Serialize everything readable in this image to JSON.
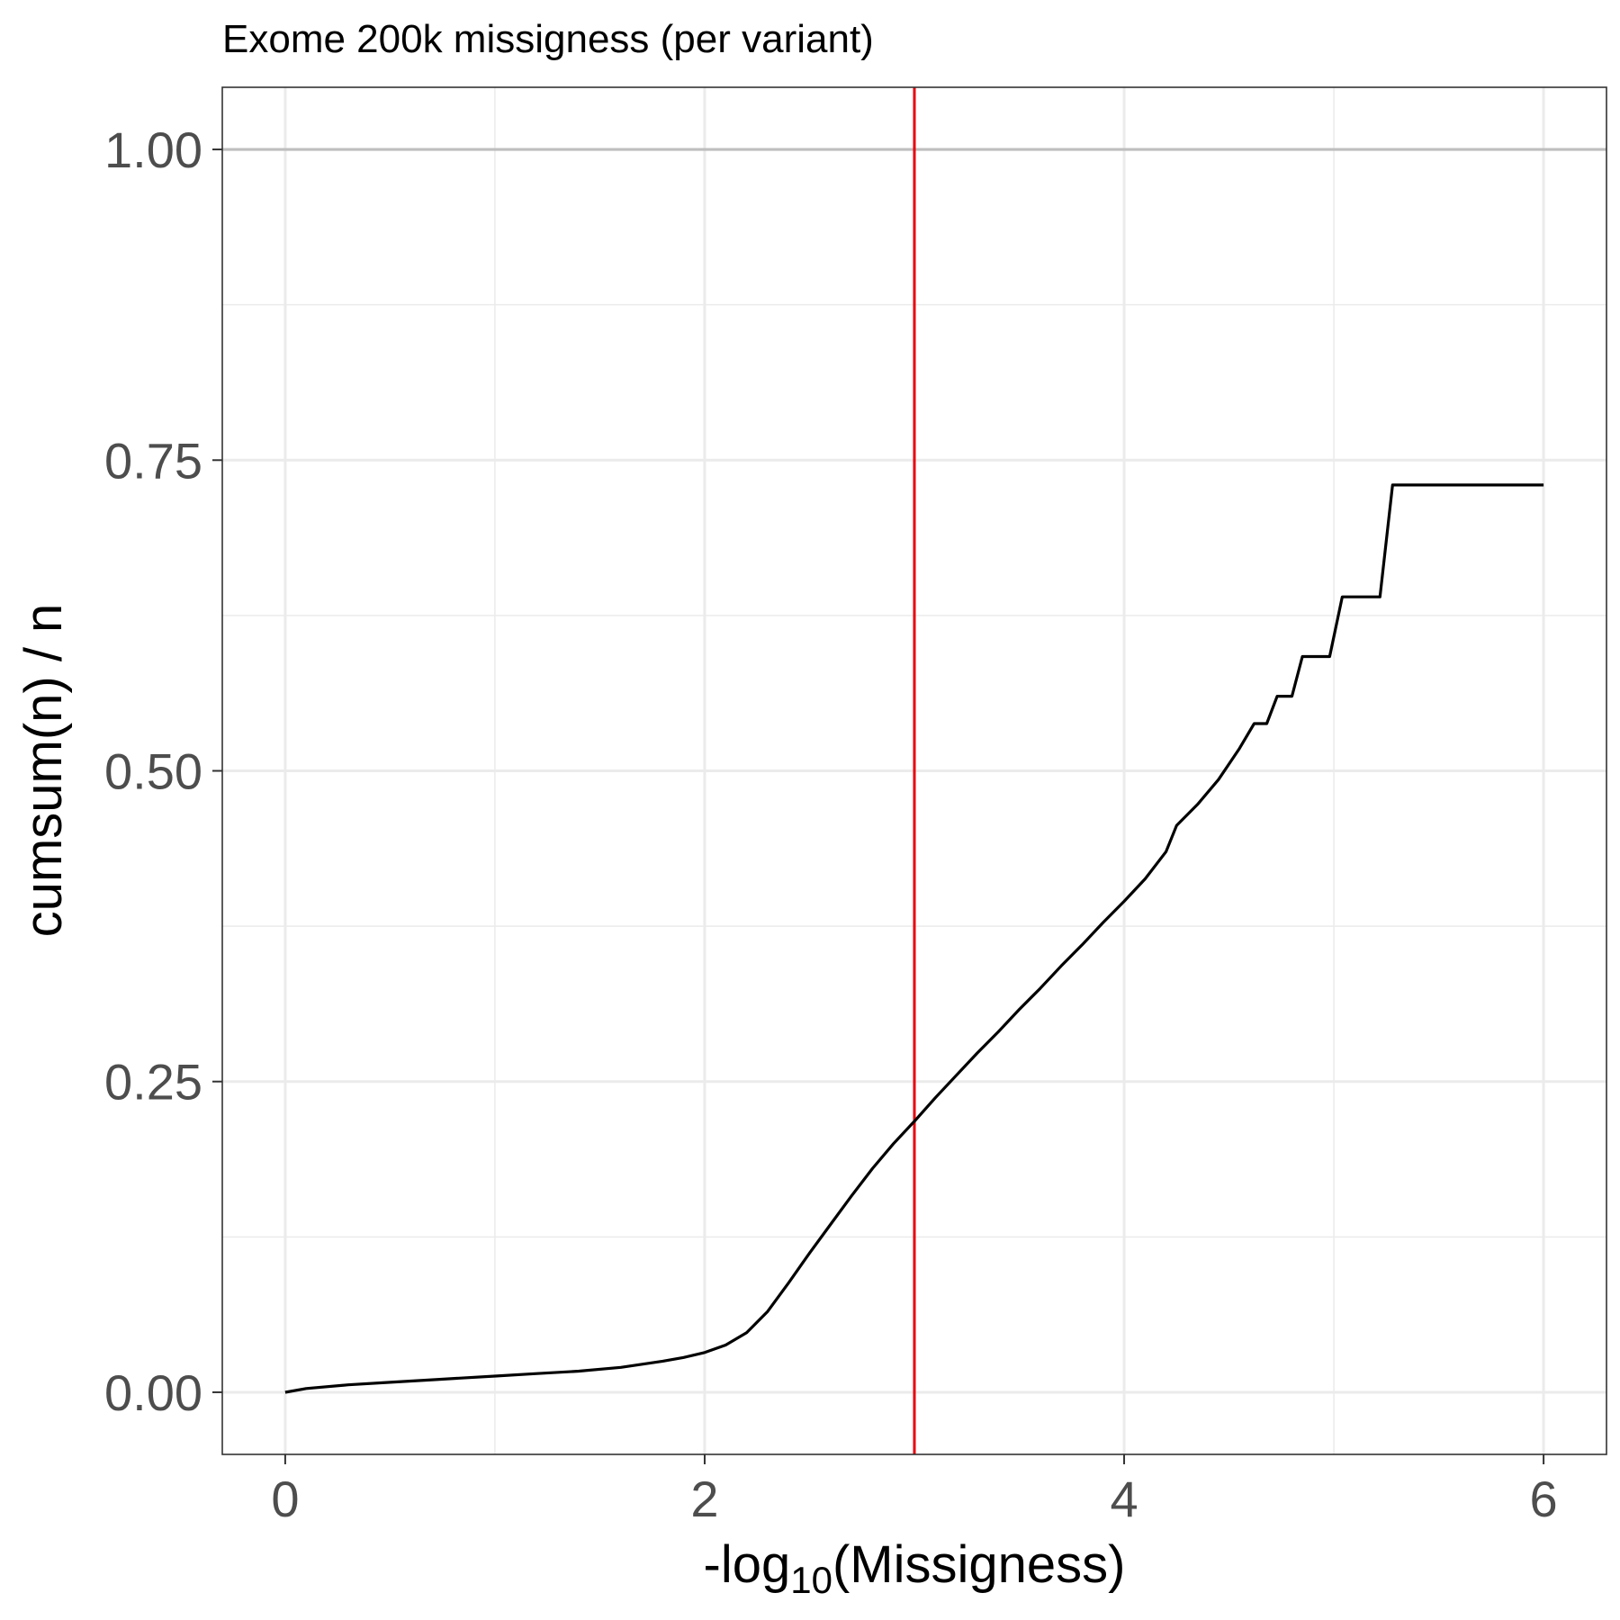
{
  "chart_data": {
    "type": "line",
    "title": "Exome 200k missigness (per variant)",
    "xlabel": {
      "prefix": "-log",
      "subscript": "10",
      "suffix": "(Missigness)"
    },
    "ylabel": "cumsum(n) / n",
    "xlim": [
      -0.3,
      6.3
    ],
    "ylim": [
      -0.05,
      1.05
    ],
    "x_ticks": [
      0,
      2,
      4,
      6
    ],
    "x_tick_labels": [
      "0",
      "2",
      "4",
      "6"
    ],
    "y_ticks": [
      0,
      0.25,
      0.5,
      0.75,
      1.0
    ],
    "y_tick_labels": [
      "0.00",
      "0.25",
      "0.50",
      "0.75",
      "1.00"
    ],
    "grid": true,
    "reference_lines": [
      {
        "orientation": "horizontal",
        "value": 1.0,
        "color": "#bebebe"
      },
      {
        "orientation": "vertical",
        "value": 3.0,
        "color": "#e8000b"
      }
    ],
    "series": [
      {
        "color": "#000000",
        "x": [
          0,
          0.1,
          0.3,
          0.5,
          0.7,
          1.0,
          1.2,
          1.4,
          1.6,
          1.8,
          1.9,
          2.0,
          2.1,
          2.2,
          2.3,
          2.4,
          2.5,
          2.6,
          2.7,
          2.8,
          2.9,
          3.0,
          3.1,
          3.2,
          3.3,
          3.4,
          3.5,
          3.6,
          3.7,
          3.8,
          3.9,
          4.0,
          4.1,
          4.2,
          4.25,
          4.35,
          4.45,
          4.55,
          4.62,
          4.68,
          4.73,
          4.8,
          4.85,
          4.98,
          5.04,
          5.22,
          5.28,
          6.0
        ],
        "y": [
          0,
          0.003,
          0.006,
          0.008,
          0.01,
          0.013,
          0.015,
          0.017,
          0.02,
          0.025,
          0.028,
          0.032,
          0.038,
          0.048,
          0.065,
          0.088,
          0.112,
          0.135,
          0.158,
          0.18,
          0.2,
          0.218,
          0.237,
          0.255,
          0.273,
          0.29,
          0.308,
          0.325,
          0.343,
          0.36,
          0.378,
          0.395,
          0.413,
          0.435,
          0.456,
          0.473,
          0.493,
          0.518,
          0.538,
          0.538,
          0.56,
          0.56,
          0.592,
          0.592,
          0.64,
          0.64,
          0.73,
          0.73
        ]
      }
    ]
  }
}
